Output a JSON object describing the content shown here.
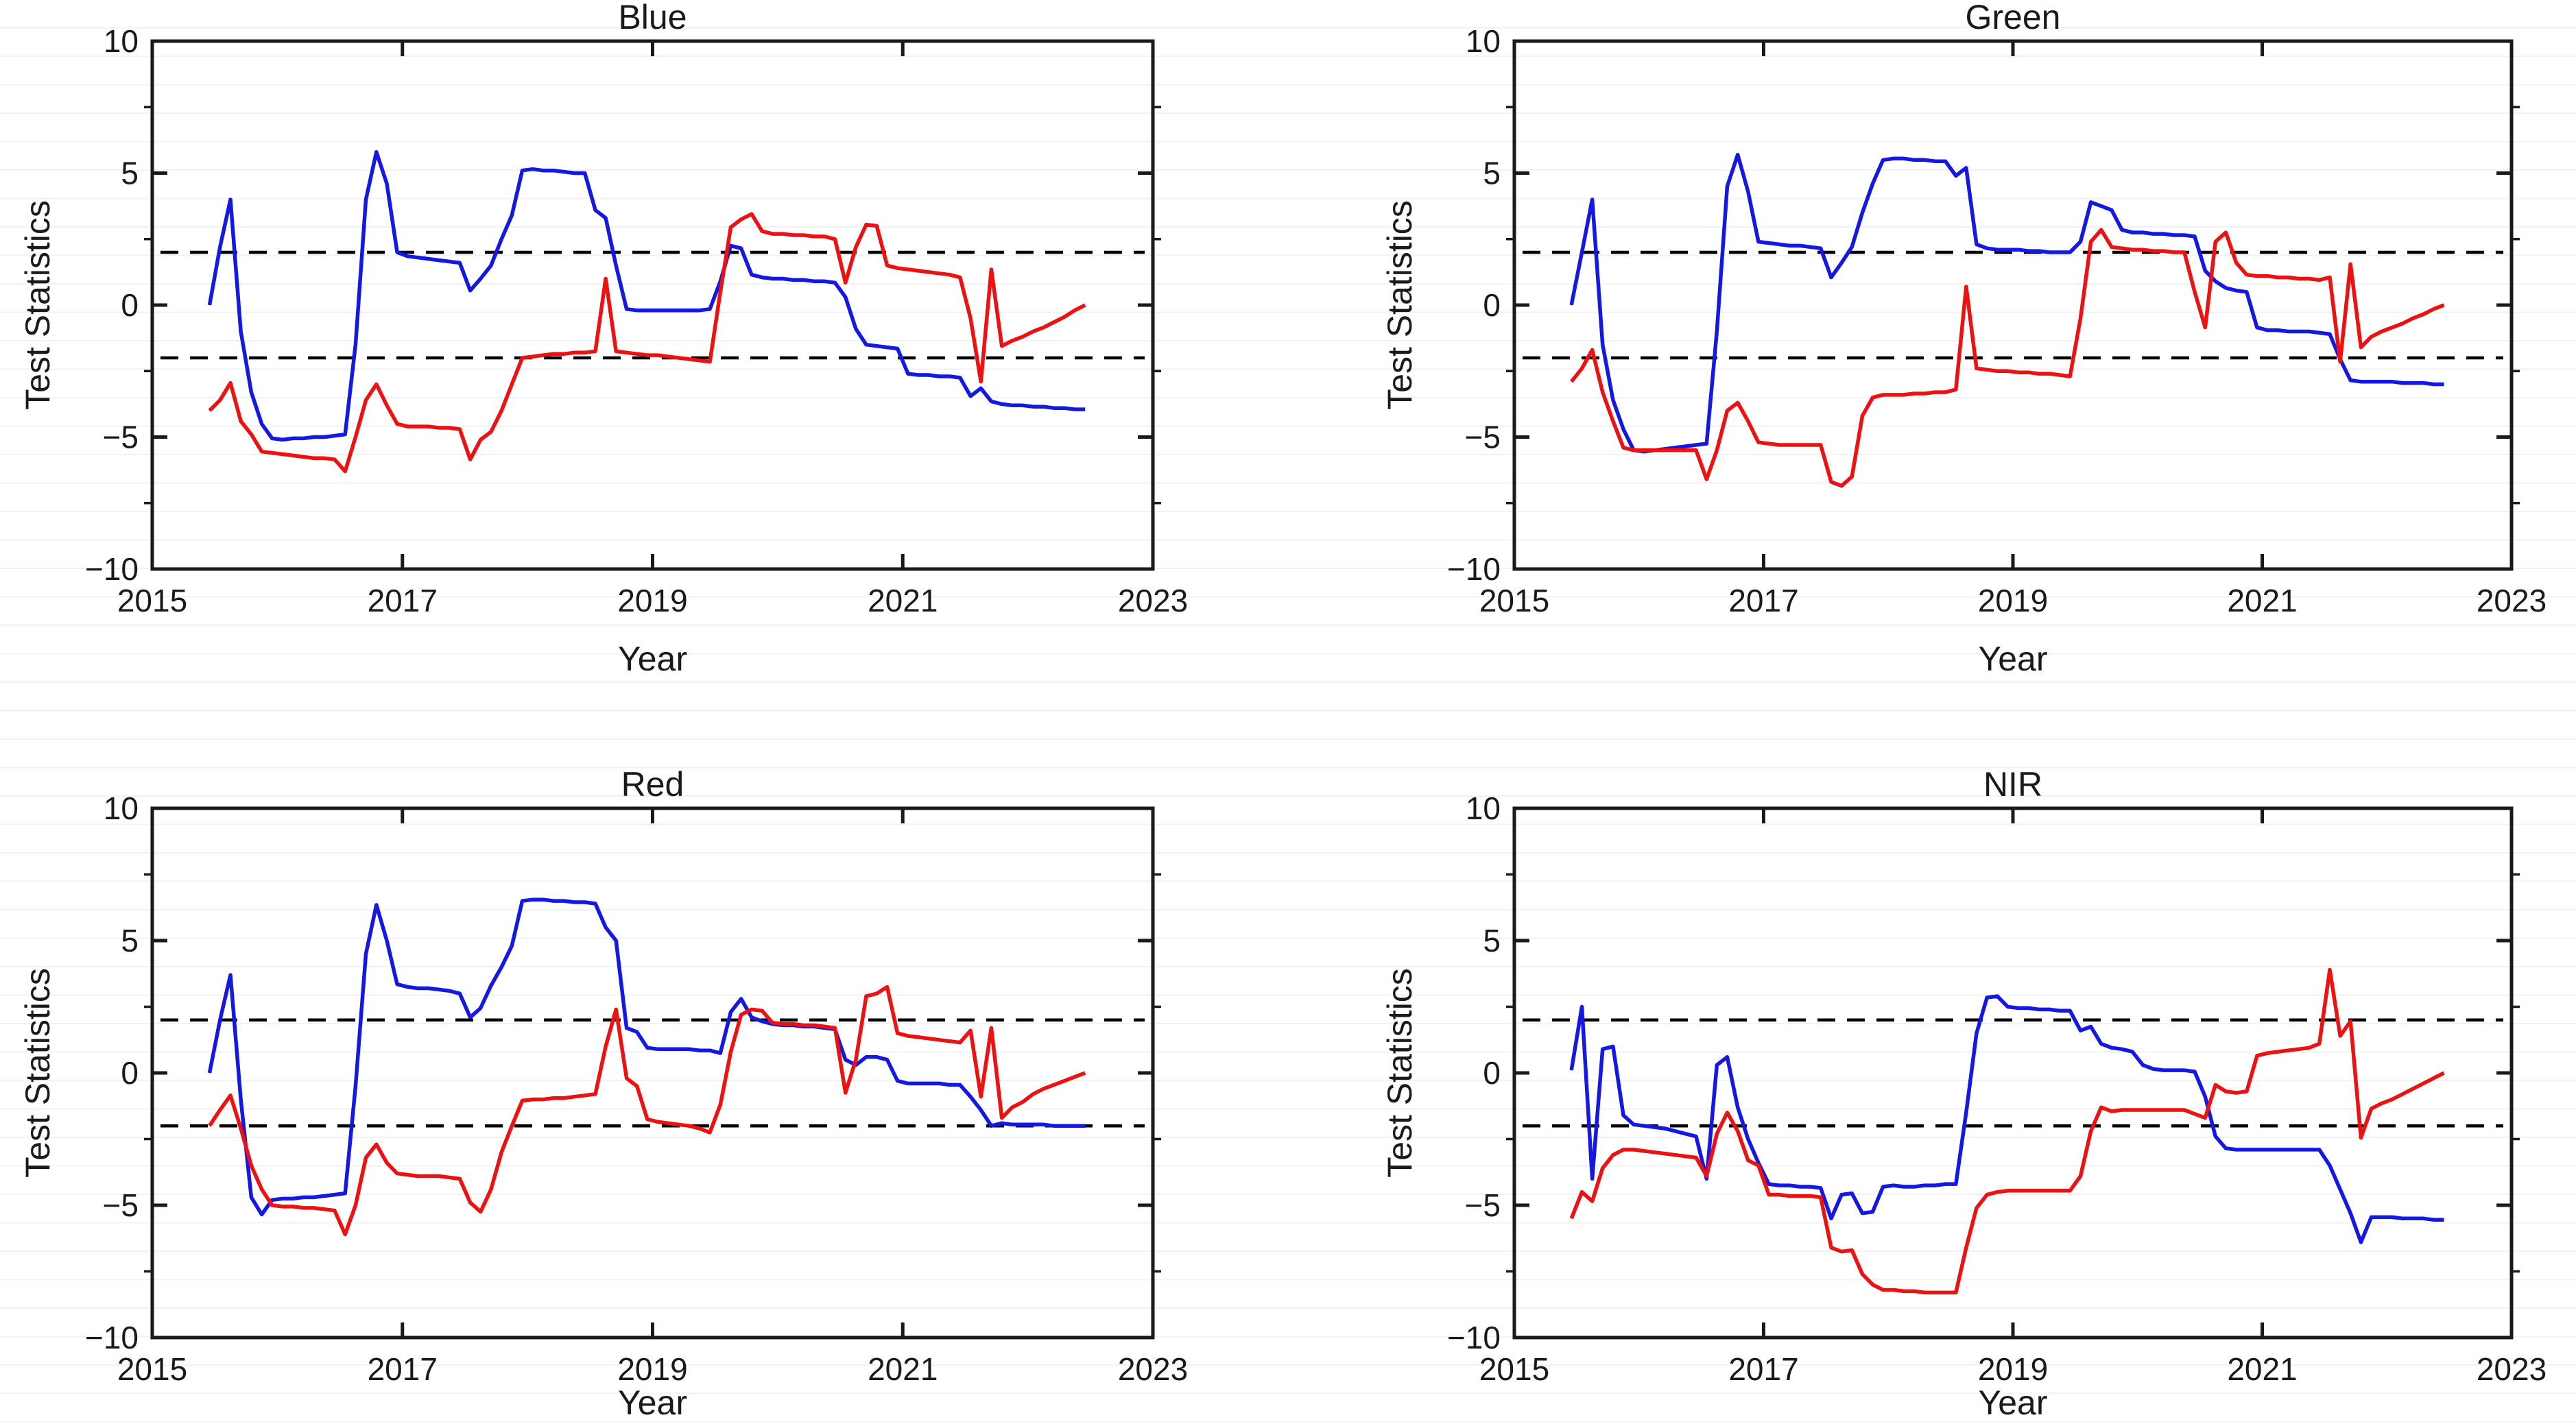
{
  "figure": {
    "background_color": "#ffffff",
    "stripe_color": "#f2f2f2",
    "axis_color": "#1a1a1a",
    "label_color": "#1a1a1a",
    "threshold_color": "#000000",
    "series_blue_color": "#1418e0",
    "series_red_color": "#ec1212"
  },
  "chart_data": {
    "type": "line",
    "common": {
      "xlabel": "Year",
      "ylabel": "Test Statistics",
      "xlim": [
        2015,
        2023
      ],
      "ylim": [
        -10,
        10
      ],
      "xticks": [
        2015,
        2017,
        2019,
        2021,
        2023
      ],
      "xtick_labels": [
        "2015",
        "2017",
        "2019",
        "2021",
        "2023"
      ],
      "yticks": [
        10,
        5,
        0,
        -5,
        -10
      ],
      "ytick_labels": [
        "10",
        "5",
        "0",
        "−5",
        "−10"
      ],
      "yticks_minor": [
        7.5,
        2.5,
        -2.5,
        -7.5
      ],
      "thresholds": [
        2,
        -2
      ],
      "grid": "off",
      "legend": "none",
      "x": [
        2015.458,
        2015.542,
        2015.625,
        2015.708,
        2015.792,
        2015.875,
        2015.958,
        2016.042,
        2016.125,
        2016.208,
        2016.292,
        2016.375,
        2016.458,
        2016.542,
        2016.625,
        2016.708,
        2016.792,
        2016.875,
        2016.958,
        2017.042,
        2017.125,
        2017.208,
        2017.292,
        2017.375,
        2017.458,
        2017.542,
        2017.625,
        2017.708,
        2017.792,
        2017.875,
        2017.958,
        2018.042,
        2018.125,
        2018.208,
        2018.292,
        2018.375,
        2018.458,
        2018.542,
        2018.625,
        2018.708,
        2018.792,
        2018.875,
        2018.958,
        2019.042,
        2019.125,
        2019.208,
        2019.292,
        2019.375,
        2019.458,
        2019.542,
        2019.625,
        2019.708,
        2019.792,
        2019.875,
        2019.958,
        2020.042,
        2020.125,
        2020.208,
        2020.292,
        2020.375,
        2020.458,
        2020.542,
        2020.625,
        2020.708,
        2020.792,
        2020.875,
        2020.958,
        2021.042,
        2021.125,
        2021.208,
        2021.292,
        2021.375,
        2021.458,
        2021.542,
        2021.625,
        2021.708,
        2021.792,
        2021.875,
        2021.958,
        2022.042,
        2022.125,
        2022.208,
        2022.292,
        2022.375,
        2022.458
      ]
    },
    "panels": [
      {
        "title": "Blue",
        "series": [
          {
            "name": "blue_series",
            "values": [
              0,
              2.2,
              4,
              -1,
              -3.3,
              -4.5,
              -5.05,
              -5.1,
              -5.05,
              -5.05,
              -5,
              -5,
              -4.95,
              -4.9,
              -1.5,
              4,
              5.8,
              4.6,
              2,
              1.85,
              1.8,
              1.75,
              1.7,
              1.65,
              1.6,
              0.55,
              1,
              1.5,
              2.5,
              3.4,
              5.1,
              5.15,
              5.1,
              5.1,
              5.05,
              5,
              5,
              3.6,
              3.3,
              1.5,
              -0.15,
              -0.2,
              -0.2,
              -0.2,
              -0.2,
              -0.2,
              -0.2,
              -0.2,
              -0.15,
              0.9,
              2.25,
              2.15,
              1.15,
              1.05,
              1,
              1,
              0.95,
              0.95,
              0.9,
              0.9,
              0.85,
              0.3,
              -0.9,
              -1.5,
              -1.55,
              -1.6,
              -1.65,
              -2.6,
              -2.65,
              -2.65,
              -2.7,
              -2.7,
              -2.75,
              -3.45,
              -3.15,
              -3.65,
              -3.75,
              -3.8,
              -3.8,
              -3.85,
              -3.85,
              -3.9,
              -3.9,
              -3.95,
              -3.95
            ]
          },
          {
            "name": "red_series",
            "values": [
              -4,
              -3.6,
              -2.95,
              -4.4,
              -4.9,
              -5.55,
              -5.6,
              -5.65,
              -5.7,
              -5.75,
              -5.8,
              -5.8,
              -5.85,
              -6.3,
              -5,
              -3.6,
              -3,
              -3.8,
              -4.5,
              -4.6,
              -4.6,
              -4.6,
              -4.65,
              -4.65,
              -4.7,
              -5.85,
              -5.1,
              -4.8,
              -4,
              -3,
              -2,
              -1.95,
              -1.9,
              -1.85,
              -1.85,
              -1.8,
              -1.8,
              -1.75,
              1,
              -1.75,
              -1.8,
              -1.85,
              -1.9,
              -1.9,
              -1.95,
              -2,
              -2.05,
              -2.1,
              -2.15,
              0.5,
              2.95,
              3.25,
              3.45,
              2.8,
              2.7,
              2.7,
              2.65,
              2.65,
              2.6,
              2.6,
              2.5,
              0.85,
              2.2,
              3.05,
              3,
              1.5,
              1.4,
              1.35,
              1.3,
              1.25,
              1.2,
              1.15,
              1.05,
              -0.5,
              -2.9,
              1.35,
              -1.55,
              -1.35,
              -1.2,
              -1,
              -0.85,
              -0.65,
              -0.45,
              -0.2,
              0
            ]
          }
        ]
      },
      {
        "title": "Green",
        "series": [
          {
            "name": "blue_series",
            "values": [
              0,
              2,
              4,
              -1.5,
              -3.6,
              -4.7,
              -5.5,
              -5.55,
              -5.5,
              -5.45,
              -5.4,
              -5.35,
              -5.3,
              -5.25,
              -1,
              4.5,
              5.7,
              4.3,
              2.4,
              2.35,
              2.3,
              2.25,
              2.25,
              2.2,
              2.15,
              1.05,
              1.6,
              2.2,
              3.5,
              4.6,
              5.5,
              5.55,
              5.55,
              5.5,
              5.5,
              5.45,
              5.45,
              4.9,
              5.2,
              2.3,
              2.15,
              2.1,
              2.1,
              2.1,
              2.05,
              2.05,
              2,
              2,
              2,
              2.4,
              3.9,
              3.75,
              3.6,
              2.85,
              2.75,
              2.75,
              2.7,
              2.7,
              2.65,
              2.65,
              2.6,
              1.3,
              0.9,
              0.65,
              0.55,
              0.5,
              -0.85,
              -0.95,
              -0.95,
              -1,
              -1,
              -1,
              -1.05,
              -1.1,
              -2.05,
              -2.85,
              -2.9,
              -2.9,
              -2.9,
              -2.9,
              -2.95,
              -2.95,
              -2.95,
              -3,
              -3
            ]
          },
          {
            "name": "red_series",
            "values": [
              -2.9,
              -2.4,
              -1.7,
              -3.3,
              -4.4,
              -5.4,
              -5.5,
              -5.5,
              -5.5,
              -5.5,
              -5.5,
              -5.5,
              -5.5,
              -6.6,
              -5.5,
              -4,
              -3.7,
              -4.4,
              -5.2,
              -5.25,
              -5.3,
              -5.3,
              -5.3,
              -5.3,
              -5.3,
              -6.7,
              -6.85,
              -6.5,
              -4.2,
              -3.5,
              -3.4,
              -3.4,
              -3.4,
              -3.35,
              -3.35,
              -3.3,
              -3.3,
              -3.2,
              0.7,
              -2.4,
              -2.45,
              -2.5,
              -2.5,
              -2.55,
              -2.55,
              -2.6,
              -2.6,
              -2.65,
              -2.7,
              -0.5,
              2.4,
              2.85,
              2.2,
              2.15,
              2.1,
              2.1,
              2.05,
              2.05,
              2,
              2,
              0.5,
              -0.85,
              2.4,
              2.75,
              1.6,
              1.15,
              1.1,
              1.1,
              1.05,
              1.05,
              1,
              1,
              0.95,
              1.05,
              -2.15,
              1.55,
              -1.6,
              -1.2,
              -1,
              -0.85,
              -0.7,
              -0.5,
              -0.35,
              -0.15,
              0
            ]
          }
        ]
      },
      {
        "title": "Red",
        "series": [
          {
            "name": "blue_series",
            "values": [
              0,
              2,
              3.7,
              -1,
              -4.7,
              -5.35,
              -4.8,
              -4.75,
              -4.75,
              -4.7,
              -4.7,
              -4.65,
              -4.6,
              -4.55,
              -0.5,
              4.5,
              6.35,
              5,
              3.35,
              3.25,
              3.2,
              3.2,
              3.15,
              3.1,
              3,
              2.1,
              2.45,
              3.3,
              4,
              4.8,
              6.5,
              6.55,
              6.55,
              6.5,
              6.5,
              6.45,
              6.45,
              6.4,
              5.5,
              5,
              1.7,
              1.55,
              0.95,
              0.9,
              0.9,
              0.9,
              0.9,
              0.85,
              0.85,
              0.75,
              2.3,
              2.8,
              2.1,
              1.95,
              1.85,
              1.8,
              1.8,
              1.75,
              1.75,
              1.7,
              1.65,
              0.5,
              0.3,
              0.6,
              0.6,
              0.5,
              -0.3,
              -0.4,
              -0.4,
              -0.4,
              -0.4,
              -0.45,
              -0.45,
              -0.9,
              -1.4,
              -2,
              -1.9,
              -1.95,
              -1.95,
              -1.95,
              -1.95,
              -2,
              -2,
              -2,
              -2
            ]
          },
          {
            "name": "red_series",
            "values": [
              -2,
              -1.4,
              -0.85,
              -2.1,
              -3.5,
              -4.4,
              -5,
              -5.05,
              -5.05,
              -5.1,
              -5.1,
              -5.15,
              -5.2,
              -6.1,
              -5,
              -3.2,
              -2.7,
              -3.4,
              -3.8,
              -3.85,
              -3.9,
              -3.9,
              -3.9,
              -3.95,
              -4,
              -4.9,
              -5.25,
              -4.4,
              -3,
              -2,
              -1.05,
              -1,
              -1,
              -0.95,
              -0.95,
              -0.9,
              -0.85,
              -0.8,
              1,
              2.4,
              -0.2,
              -0.5,
              -1.75,
              -1.85,
              -1.9,
              -1.95,
              -2,
              -2.1,
              -2.25,
              -1.2,
              0.8,
              2.2,
              2.4,
              2.35,
              1.9,
              1.85,
              1.85,
              1.8,
              1.8,
              1.75,
              1.7,
              -0.75,
              0.5,
              2.9,
              3,
              3.25,
              1.5,
              1.4,
              1.35,
              1.3,
              1.25,
              1.2,
              1.15,
              1.6,
              -0.9,
              1.7,
              -1.7,
              -1.3,
              -1.1,
              -0.8,
              -0.6,
              -0.45,
              -0.3,
              -0.15,
              0
            ]
          }
        ]
      },
      {
        "title": "NIR",
        "series": [
          {
            "name": "blue_series",
            "values": [
              0.1,
              2.5,
              -4,
              0.9,
              1,
              -1.6,
              -1.95,
              -2,
              -2.05,
              -2.1,
              -2.2,
              -2.3,
              -2.4,
              -4,
              0.3,
              0.6,
              -1.3,
              -2.5,
              -3.4,
              -4.2,
              -4.25,
              -4.25,
              -4.3,
              -4.3,
              -4.35,
              -5.5,
              -4.6,
              -4.55,
              -5.3,
              -5.25,
              -4.3,
              -4.25,
              -4.3,
              -4.3,
              -4.25,
              -4.25,
              -4.2,
              -4.2,
              -1.5,
              1.5,
              2.85,
              2.9,
              2.5,
              2.45,
              2.45,
              2.4,
              2.4,
              2.35,
              2.35,
              1.6,
              1.75,
              1.1,
              0.95,
              0.9,
              0.8,
              0.3,
              0.15,
              0.1,
              0.1,
              0.1,
              0.05,
              -0.9,
              -2.4,
              -2.85,
              -2.9,
              -2.9,
              -2.9,
              -2.9,
              -2.9,
              -2.9,
              -2.9,
              -2.9,
              -2.9,
              -3.5,
              -4.4,
              -5.3,
              -6.4,
              -5.45,
              -5.45,
              -5.45,
              -5.5,
              -5.5,
              -5.5,
              -5.55,
              -5.55
            ]
          },
          {
            "name": "red_series",
            "values": [
              -5.5,
              -4.5,
              -4.85,
              -3.6,
              -3.1,
              -2.9,
              -2.9,
              -2.95,
              -3,
              -3.05,
              -3.1,
              -3.15,
              -3.2,
              -3.9,
              -2.3,
              -1.5,
              -2.2,
              -3.3,
              -3.5,
              -4.6,
              -4.6,
              -4.65,
              -4.65,
              -4.65,
              -4.7,
              -6.6,
              -6.75,
              -6.7,
              -7.6,
              -8,
              -8.2,
              -8.2,
              -8.25,
              -8.25,
              -8.3,
              -8.3,
              -8.3,
              -8.3,
              -6.6,
              -5.1,
              -4.6,
              -4.5,
              -4.45,
              -4.45,
              -4.45,
              -4.45,
              -4.45,
              -4.45,
              -4.45,
              -3.9,
              -2.2,
              -1.3,
              -1.45,
              -1.4,
              -1.4,
              -1.4,
              -1.4,
              -1.4,
              -1.4,
              -1.4,
              -1.55,
              -1.7,
              -0.45,
              -0.7,
              -0.75,
              -0.7,
              0.65,
              0.75,
              0.8,
              0.85,
              0.9,
              0.95,
              1.1,
              3.9,
              1.4,
              1.95,
              -2.45,
              -1.35,
              -1.15,
              -1,
              -0.8,
              -0.6,
              -0.4,
              -0.2,
              0
            ]
          }
        ]
      }
    ]
  }
}
